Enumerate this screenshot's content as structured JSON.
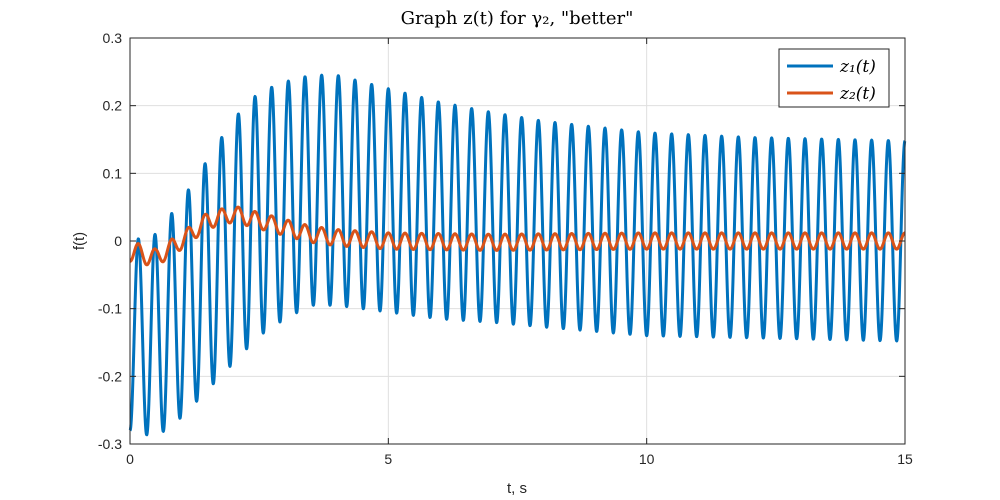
{
  "chart_data": {
    "type": "line",
    "title": "Graph z(t) for γ₂, \"better\"",
    "xlabel": "t, s",
    "ylabel": "f(t)",
    "xlim": [
      0,
      15
    ],
    "ylim": [
      -0.3,
      0.3
    ],
    "xticks": [
      "0",
      "5",
      "10",
      "15"
    ],
    "yticks": [
      "-0.3",
      "-0.2",
      "-0.1",
      "0",
      "0.1",
      "0.2",
      "0.3"
    ],
    "grid": true,
    "legend_position": "top-right",
    "series": [
      {
        "name": "z₁(t)",
        "color": "#0072BD",
        "sample_step": 0.1,
        "oscillation_frequency_hz": 3.1,
        "envelope": {
          "t": [
            0,
            0.5,
            1.0,
            1.5,
            2.0,
            2.5,
            3.0,
            3.5,
            4.0,
            5.0,
            6.0,
            7.0,
            8.0,
            10.0,
            12.0,
            15.0
          ],
          "center": [
            -0.14,
            -0.14,
            -0.1,
            -0.05,
            0.0,
            0.04,
            0.06,
            0.075,
            0.075,
            0.06,
            0.045,
            0.035,
            0.025,
            0.01,
            0.005,
            0.0
          ],
          "amplitude": [
            0.14,
            0.15,
            0.16,
            0.17,
            0.18,
            0.18,
            0.175,
            0.17,
            0.17,
            0.165,
            0.16,
            0.155,
            0.152,
            0.15,
            0.148,
            0.148
          ]
        }
      },
      {
        "name": "z₂(t)",
        "color": "#D95319",
        "sample_step": 0.1,
        "oscillation_frequency_hz": 3.1,
        "envelope": {
          "t": [
            0,
            0.5,
            1.0,
            1.5,
            2.0,
            2.5,
            3.0,
            3.5,
            4.0,
            5.0,
            7.0,
            10.0,
            15.0
          ],
          "center": [
            -0.015,
            -0.025,
            0.0,
            0.03,
            0.04,
            0.03,
            0.02,
            0.01,
            0.005,
            0.0,
            -0.002,
            0.0,
            0.0
          ],
          "amplitude": [
            0.015,
            0.013,
            0.012,
            0.012,
            0.012,
            0.012,
            0.012,
            0.012,
            0.012,
            0.012,
            0.012,
            0.012,
            0.012
          ]
        }
      }
    ]
  }
}
